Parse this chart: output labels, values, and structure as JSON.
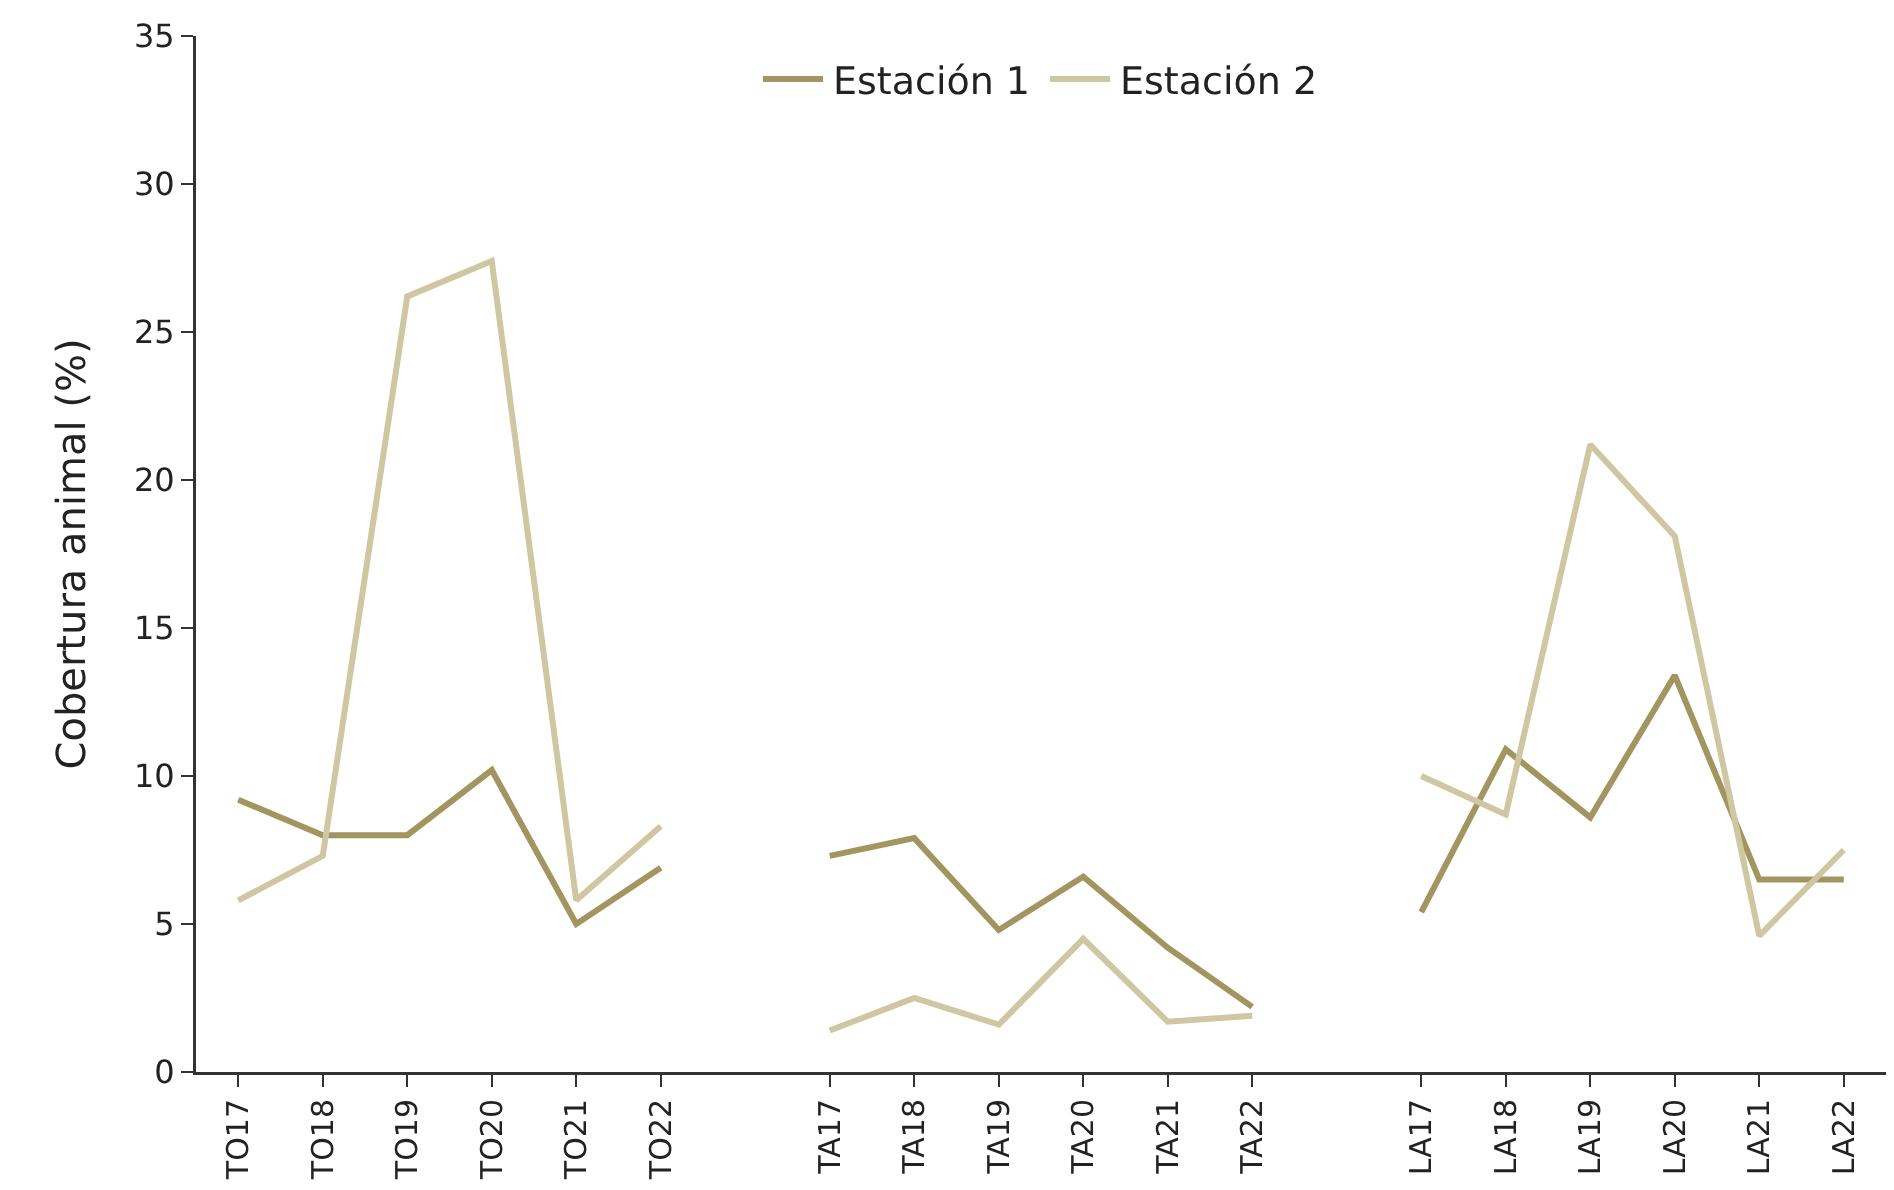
{
  "chart_data": {
    "type": "line",
    "ylabel": "Cobertura animal (%)",
    "categories": [
      "TO17",
      "TO18",
      "TO19",
      "TO20",
      "TO21",
      "TO22",
      null,
      "TA17",
      "TA18",
      "TA19",
      "TA20",
      "TA21",
      "TA22",
      null,
      "LA17",
      "LA18",
      "LA19",
      "LA20",
      "LA21",
      "LA22"
    ],
    "series": [
      {
        "name": "Estación 1",
        "color": "#a39560",
        "values": [
          9.2,
          8.0,
          8.0,
          10.2,
          5.0,
          6.9,
          null,
          7.3,
          7.9,
          4.8,
          6.6,
          4.2,
          2.2,
          null,
          5.4,
          10.9,
          8.6,
          13.4,
          6.5,
          6.5
        ]
      },
      {
        "name": "Estación 2",
        "color": "#cfc7a2",
        "values": [
          5.8,
          7.3,
          26.2,
          27.4,
          5.8,
          8.3,
          null,
          1.4,
          2.5,
          1.6,
          4.5,
          1.7,
          1.9,
          null,
          10.0,
          8.7,
          21.2,
          18.1,
          4.6,
          7.5
        ]
      }
    ],
    "ylim": [
      0,
      35
    ],
    "yticks": [
      0,
      5,
      10,
      15,
      20,
      25,
      30,
      35
    ],
    "grid": false,
    "legend": "top",
    "marker": "none",
    "line_style": "solid"
  }
}
